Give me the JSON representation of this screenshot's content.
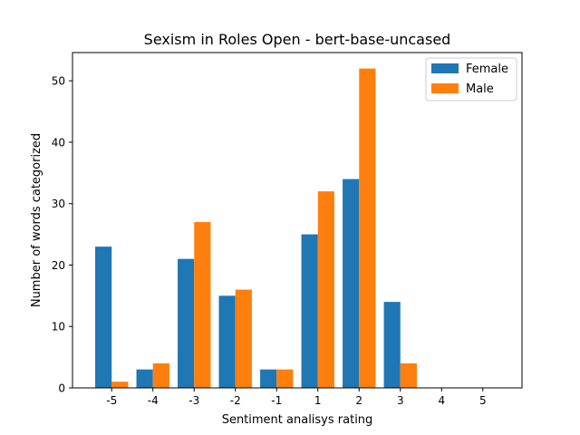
{
  "chart_data": {
    "type": "bar",
    "title": "Sexism in Roles Open - bert-base-uncased",
    "xlabel": "Sentiment analisys rating",
    "ylabel": "Number of words categorized",
    "categories": [
      "-5",
      "-4",
      "-3",
      "-2",
      "-1",
      "1",
      "2",
      "3",
      "4",
      "5"
    ],
    "series": [
      {
        "name": "Female",
        "color": "#1f77b4",
        "values": [
          23,
          3,
          21,
          15,
          3,
          25,
          34,
          14,
          0,
          0
        ]
      },
      {
        "name": "Male",
        "color": "#ff7f0e",
        "values": [
          1,
          4,
          27,
          16,
          3,
          32,
          52,
          4,
          0,
          0
        ]
      }
    ],
    "ylim": [
      0,
      54.6
    ],
    "yticks": [
      0,
      10,
      20,
      30,
      40,
      50
    ],
    "grid": false,
    "legend_position": "top-right"
  }
}
